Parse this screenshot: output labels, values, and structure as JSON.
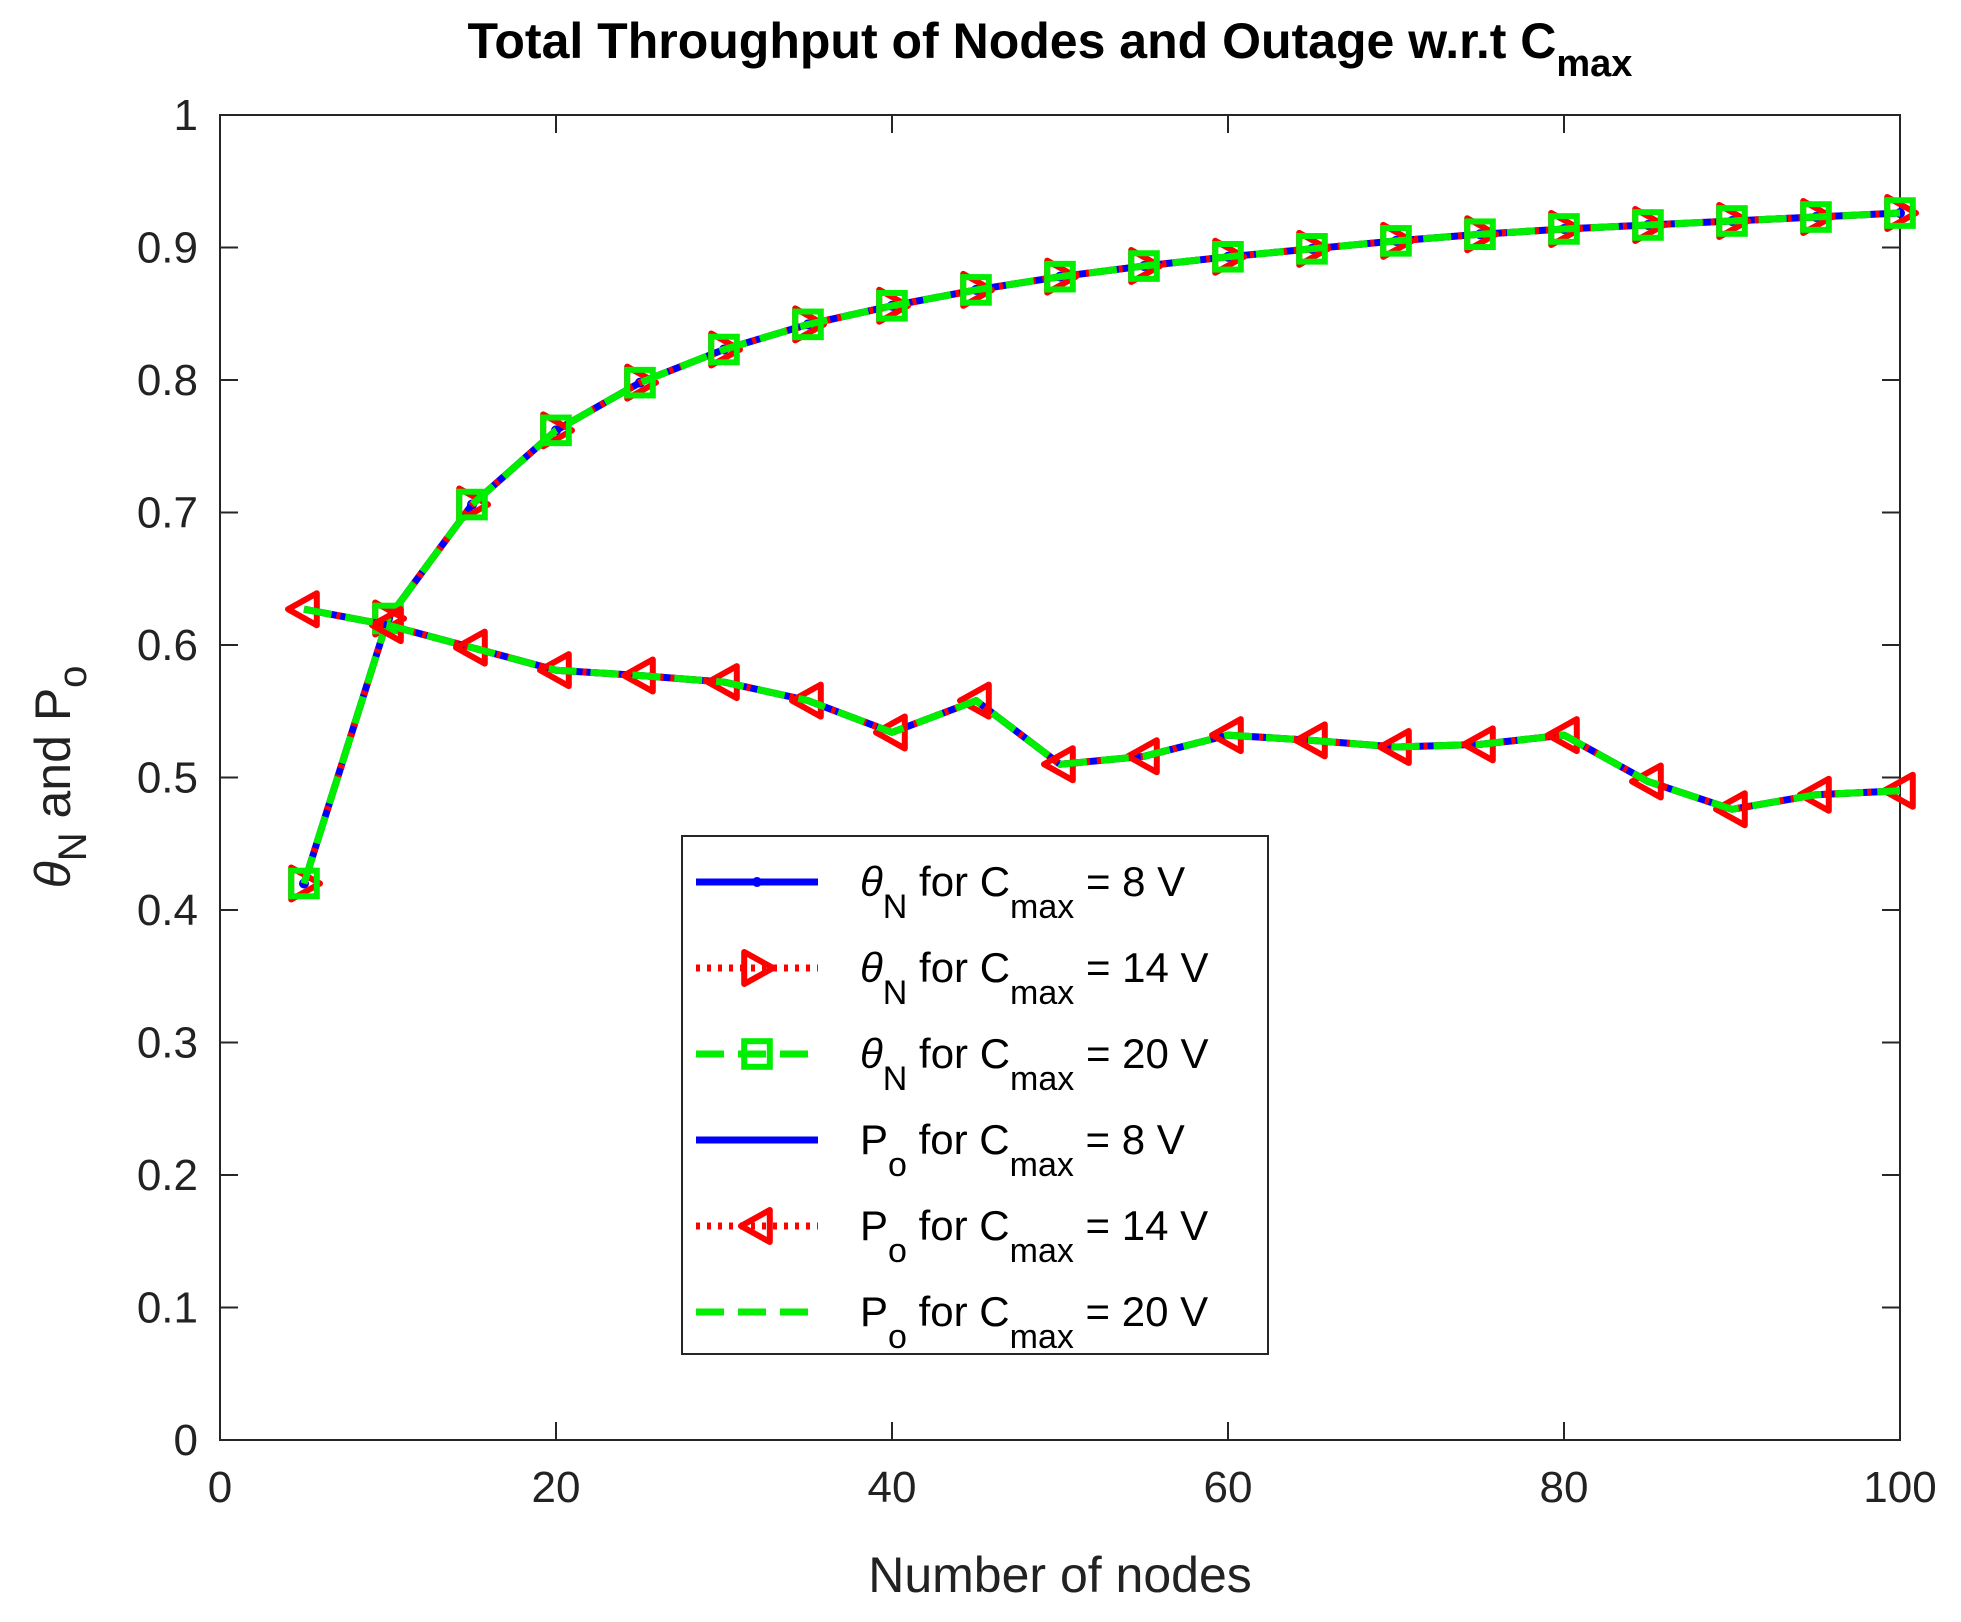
{
  "chart_data": {
    "type": "line",
    "title": {
      "main": "Total Throughput of Nodes and Outage w.r.t C",
      "sub": "max"
    },
    "xlabel": "Number of nodes",
    "ylabel": {
      "theta": "θ",
      "theta_sub": "N",
      "mid": " and P",
      "p_sub": "o"
    },
    "xlim": [
      0,
      100
    ],
    "ylim": [
      0,
      1
    ],
    "xticks": [
      0,
      20,
      40,
      60,
      80,
      100
    ],
    "yticks": [
      0,
      0.1,
      0.2,
      0.3,
      0.4,
      0.5,
      0.6,
      0.7,
      0.8,
      0.9,
      1
    ],
    "ytick_labels": [
      "0",
      "0.1",
      "0.2",
      "0.3",
      "0.4",
      "0.5",
      "0.6",
      "0.7",
      "0.8",
      "0.9",
      "1"
    ],
    "grid": false,
    "legend_position": "center-bottom",
    "x": [
      5,
      10,
      15,
      20,
      25,
      30,
      35,
      40,
      45,
      50,
      55,
      60,
      65,
      70,
      75,
      80,
      85,
      90,
      95,
      100
    ],
    "series": [
      {
        "name": "θN for Cmax = 8 V",
        "sym": "θ",
        "sub1": "N",
        "mid": " for C",
        "sub2": "max",
        "tail": " = 8 V",
        "color": "#0000ff",
        "dash": "solid",
        "marker": "point",
        "values": [
          0.42,
          0.62,
          0.706,
          0.762,
          0.798,
          0.823,
          0.842,
          0.856,
          0.868,
          0.878,
          0.886,
          0.893,
          0.899,
          0.905,
          0.91,
          0.914,
          0.917,
          0.92,
          0.923,
          0.926
        ]
      },
      {
        "name": "θN for Cmax = 14 V",
        "sym": "θ",
        "sub1": "N",
        "mid": " for C",
        "sub2": "max",
        "tail": " = 14 V",
        "color": "#ff0000",
        "dash": "dotted",
        "marker": "triangle-right",
        "values": [
          0.42,
          0.62,
          0.706,
          0.762,
          0.798,
          0.823,
          0.842,
          0.856,
          0.868,
          0.878,
          0.886,
          0.893,
          0.899,
          0.905,
          0.91,
          0.914,
          0.917,
          0.92,
          0.923,
          0.926
        ]
      },
      {
        "name": "θN for Cmax = 20 V",
        "sym": "θ",
        "sub1": "N",
        "mid": " for C",
        "sub2": "max",
        "tail": " = 20 V",
        "color": "#00ee00",
        "dash": "dashed",
        "marker": "square",
        "values": [
          0.42,
          0.62,
          0.706,
          0.762,
          0.798,
          0.823,
          0.842,
          0.856,
          0.868,
          0.878,
          0.886,
          0.893,
          0.899,
          0.905,
          0.91,
          0.914,
          0.917,
          0.92,
          0.923,
          0.926
        ]
      },
      {
        "name": "Po for Cmax = 8 V",
        "sym": "P",
        "sub1": "o",
        "mid": " for C",
        "sub2": "max",
        "tail": " = 8 V",
        "color": "#0000ff",
        "dash": "solid",
        "marker": "none",
        "values": [
          0.627,
          0.615,
          0.598,
          0.581,
          0.577,
          0.572,
          0.558,
          0.534,
          0.558,
          0.51,
          0.516,
          0.532,
          0.528,
          0.523,
          0.525,
          0.532,
          0.497,
          0.476,
          0.487,
          0.49
        ]
      },
      {
        "name": "Po for Cmax = 14 V",
        "sym": "P",
        "sub1": "o",
        "mid": " for C",
        "sub2": "max",
        "tail": " = 14 V",
        "color": "#ff0000",
        "dash": "dotted",
        "marker": "triangle-left",
        "values": [
          0.627,
          0.615,
          0.598,
          0.581,
          0.577,
          0.572,
          0.558,
          0.534,
          0.558,
          0.51,
          0.516,
          0.532,
          0.528,
          0.523,
          0.525,
          0.532,
          0.497,
          0.476,
          0.487,
          0.49
        ]
      },
      {
        "name": "Po for Cmax = 20 V",
        "sym": "P",
        "sub1": "o",
        "mid": " for C",
        "sub2": "max",
        "tail": " = 20 V",
        "color": "#00ee00",
        "dash": "dashed",
        "marker": "none",
        "values": [
          0.627,
          0.615,
          0.598,
          0.581,
          0.577,
          0.572,
          0.558,
          0.534,
          0.558,
          0.51,
          0.516,
          0.532,
          0.528,
          0.523,
          0.525,
          0.532,
          0.497,
          0.476,
          0.487,
          0.49
        ]
      }
    ]
  }
}
